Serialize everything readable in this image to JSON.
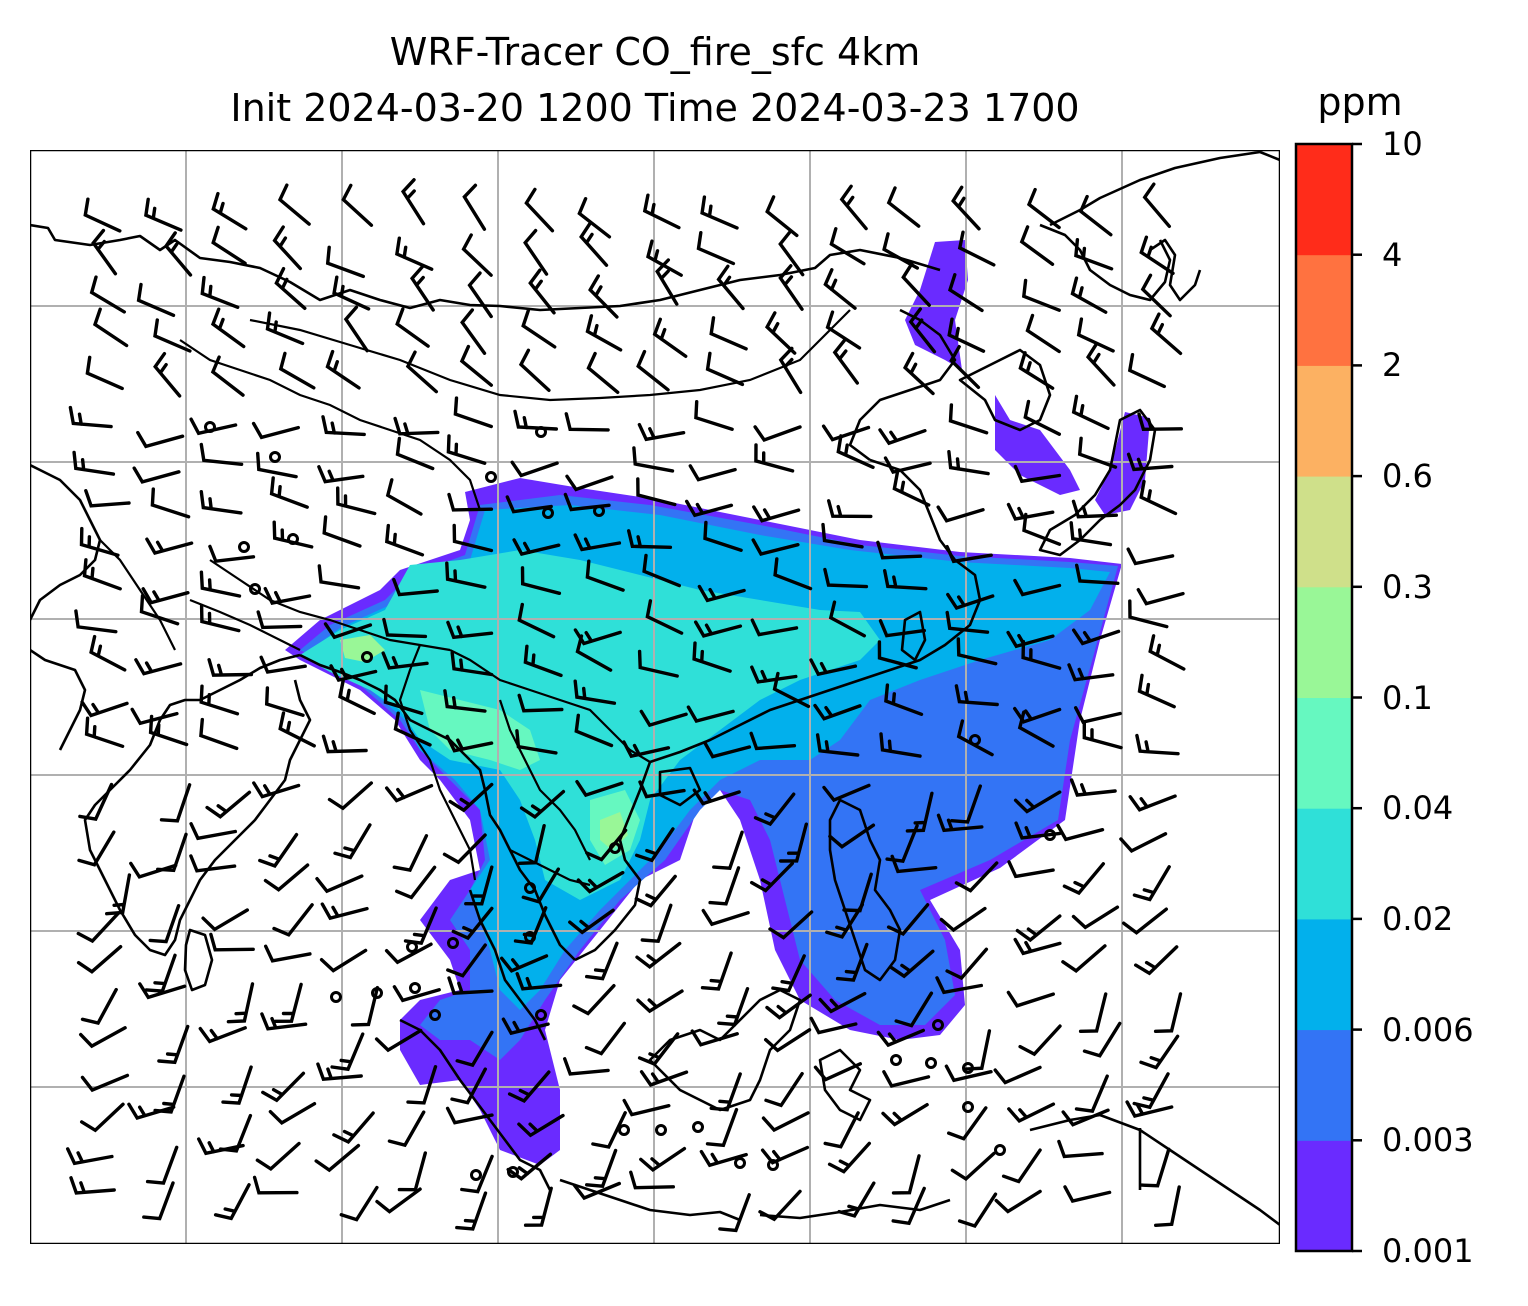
{
  "title_line1": "WRF-Tracer CO_fire_sfc 4km",
  "title_line2": "Init 2024-03-20 1200 Time 2024-03-23 1700",
  "colorbar": {
    "unit": "ppm",
    "levels": [
      "0.001",
      "0.003",
      "0.006",
      "0.02",
      "0.04",
      "0.1",
      "0.3",
      "0.6",
      "2",
      "4",
      "10"
    ],
    "colors": [
      "#6a2bff",
      "#3374f5",
      "#02b0ec",
      "#2fe0d8",
      "#66f8c0",
      "#99f797",
      "#cfe08a",
      "#fcb162",
      "#ff7240",
      "#ff2c1a"
    ]
  },
  "map": {
    "field": "CO_fire_sfc",
    "resolution": "4km",
    "gridlines": true,
    "overlays": [
      "coastlines",
      "country borders",
      "wind barbs"
    ]
  }
}
